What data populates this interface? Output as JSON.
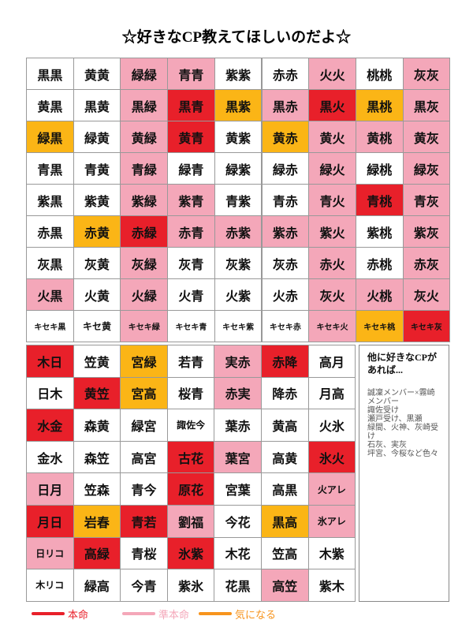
{
  "title": "☆好きなCP教えてほしいのだよ☆",
  "legend": [
    {
      "label": "本命",
      "color": "#e8202a"
    },
    {
      "label": "準本命",
      "color": "#f4a7b9"
    },
    {
      "label": "気になる",
      "color": "#f7941d"
    }
  ],
  "grid1": {
    "rows": [
      [
        {
          "text": "黒黒"
        },
        {
          "text": "黄黄"
        },
        {
          "text": "緑緑",
          "color": "#f4a7b9"
        },
        {
          "text": "青青",
          "color": "#f4a7b9"
        },
        {
          "text": "紫紫"
        },
        {
          "text": "赤赤"
        },
        {
          "text": "火火",
          "color": "#f4a7b9"
        },
        {
          "text": "桃桃"
        },
        {
          "text": "灰灰",
          "color": "#f4a7b9"
        }
      ],
      [
        {
          "text": "黄黒"
        },
        {
          "text": "黒黄"
        },
        {
          "text": "黒緑",
          "color": "#f4a7b9"
        },
        {
          "text": "黒青",
          "color": "#e8202a"
        },
        {
          "text": "黒紫",
          "color": "#fbb516"
        },
        {
          "text": "黒赤",
          "color": "#f4a7b9"
        },
        {
          "text": "黒火",
          "color": "#e8202a"
        },
        {
          "text": "黒桃",
          "color": "#fbb516"
        },
        {
          "text": "黒灰",
          "color": "#f4a7b9"
        }
      ],
      [
        {
          "text": "緑黒",
          "color": "#fbb516"
        },
        {
          "text": "緑黄"
        },
        {
          "text": "黄緑",
          "color": "#f4a7b9"
        },
        {
          "text": "黄青",
          "color": "#e8202a"
        },
        {
          "text": "黄紫"
        },
        {
          "text": "黄赤",
          "color": "#fbb516"
        },
        {
          "text": "黄火",
          "color": "#f4a7b9"
        },
        {
          "text": "黄桃",
          "color": "#f4a7b9"
        },
        {
          "text": "黄灰",
          "color": "#f4a7b9"
        }
      ],
      [
        {
          "text": "青黒"
        },
        {
          "text": "青黄"
        },
        {
          "text": "青緑",
          "color": "#f4a7b9"
        },
        {
          "text": "緑青"
        },
        {
          "text": "緑紫"
        },
        {
          "text": "緑赤"
        },
        {
          "text": "緑火",
          "color": "#f4a7b9"
        },
        {
          "text": "緑桃"
        },
        {
          "text": "緑灰",
          "color": "#f4a7b9"
        }
      ],
      [
        {
          "text": "紫黒"
        },
        {
          "text": "紫黄"
        },
        {
          "text": "紫緑",
          "color": "#f4a7b9"
        },
        {
          "text": "紫青",
          "color": "#f4a7b9"
        },
        {
          "text": "青紫"
        },
        {
          "text": "青赤"
        },
        {
          "text": "青火",
          "color": "#f4a7b9"
        },
        {
          "text": "青桃",
          "color": "#e8202a"
        },
        {
          "text": "青灰",
          "color": "#f4a7b9"
        }
      ],
      [
        {
          "text": "赤黒"
        },
        {
          "text": "赤黄",
          "color": "#fbb516"
        },
        {
          "text": "赤緑",
          "color": "#e8202a"
        },
        {
          "text": "赤青",
          "color": "#f4a7b9"
        },
        {
          "text": "赤紫",
          "color": "#f4a7b9"
        },
        {
          "text": "紫赤",
          "color": "#f4a7b9"
        },
        {
          "text": "紫火",
          "color": "#f4a7b9"
        },
        {
          "text": "紫桃"
        },
        {
          "text": "紫灰",
          "color": "#f4a7b9"
        }
      ],
      [
        {
          "text": "灰黒"
        },
        {
          "text": "灰黄"
        },
        {
          "text": "灰緑",
          "color": "#f4a7b9"
        },
        {
          "text": "灰青"
        },
        {
          "text": "灰紫"
        },
        {
          "text": "灰赤"
        },
        {
          "text": "赤火",
          "color": "#f4a7b9"
        },
        {
          "text": "赤桃"
        },
        {
          "text": "赤灰",
          "color": "#f4a7b9"
        }
      ],
      [
        {
          "text": "火黒",
          "color": "#f4a7b9"
        },
        {
          "text": "火黄"
        },
        {
          "text": "火緑",
          "color": "#f4a7b9"
        },
        {
          "text": "火青"
        },
        {
          "text": "火紫"
        },
        {
          "text": "火赤"
        },
        {
          "text": "灰火",
          "color": "#f4a7b9"
        },
        {
          "text": "火桃",
          "color": "#f4a7b9"
        },
        {
          "text": "灰火",
          "color": "#f4a7b9"
        }
      ],
      [
        {
          "text": "キセキ黒"
        },
        {
          "text": "キセ黄"
        },
        {
          "text": "キセキ緑",
          "color": "#f4a7b9"
        },
        {
          "text": "キセキ青"
        },
        {
          "text": "キセキ紫"
        },
        {
          "text": "キセキ赤"
        },
        {
          "text": "キセキ火",
          "color": "#f4a7b9"
        },
        {
          "text": "キセキ桃",
          "color": "#fbb516"
        },
        {
          "text": "キセキ灰",
          "color": "#e8202a"
        }
      ]
    ]
  },
  "grid2": {
    "rows": [
      [
        {
          "text": "木日",
          "color": "#e8202a"
        },
        {
          "text": "笠黄"
        },
        {
          "text": "宮緑",
          "color": "#fbb516"
        },
        {
          "text": "若青"
        },
        {
          "text": "実赤",
          "color": "#f4a7b9"
        },
        {
          "text": "赤降",
          "color": "#e8202a"
        },
        {
          "text": "高月"
        }
      ],
      [
        {
          "text": "日木"
        },
        {
          "text": "黄笠",
          "color": "#e8202a"
        },
        {
          "text": "宮高",
          "color": "#fbb516"
        },
        {
          "text": "桜青"
        },
        {
          "text": "赤実",
          "color": "#f4a7b9"
        },
        {
          "text": "降赤"
        },
        {
          "text": "月高"
        }
      ],
      [
        {
          "text": "水金",
          "color": "#e8202a"
        },
        {
          "text": "森黄"
        },
        {
          "text": "緑宮"
        },
        {
          "text": "諏佐今"
        },
        {
          "text": "葉赤"
        },
        {
          "text": "黄高"
        },
        {
          "text": "火氷"
        }
      ],
      [
        {
          "text": "金水"
        },
        {
          "text": "森笠"
        },
        {
          "text": "高宮"
        },
        {
          "text": "古花",
          "color": "#e8202a"
        },
        {
          "text": "葉宮",
          "color": "#f4a7b9"
        },
        {
          "text": "高黄"
        },
        {
          "text": "氷火",
          "color": "#e8202a"
        }
      ],
      [
        {
          "text": "日月",
          "color": "#f4a7b9"
        },
        {
          "text": "笠森"
        },
        {
          "text": "青今"
        },
        {
          "text": "原花",
          "color": "#e8202a"
        },
        {
          "text": "宮葉"
        },
        {
          "text": "高黒"
        },
        {
          "text": "火アレ",
          "color": "#f4a7b9"
        }
      ],
      [
        {
          "text": "月日",
          "color": "#e8202a"
        },
        {
          "text": "岩春",
          "color": "#fbb516"
        },
        {
          "text": "青若",
          "color": "#e8202a"
        },
        {
          "text": "劉福",
          "color": "#f4a7b9"
        },
        {
          "text": "今花"
        },
        {
          "text": "黒高",
          "color": "#fbb516"
        },
        {
          "text": "氷アレ",
          "color": "#f4a7b9"
        }
      ],
      [
        {
          "text": "日リコ",
          "color": "#f4a7b9"
        },
        {
          "text": "高緑",
          "color": "#e8202a"
        },
        {
          "text": "青桜"
        },
        {
          "text": "氷紫",
          "color": "#e8202a"
        },
        {
          "text": "木花"
        },
        {
          "text": "笠高"
        },
        {
          "text": "木紫"
        }
      ],
      [
        {
          "text": "木リコ"
        },
        {
          "text": "緑高"
        },
        {
          "text": "今青"
        },
        {
          "text": "紫氷"
        },
        {
          "text": "花黒"
        },
        {
          "text": "高笠",
          "color": "#f4a7b9"
        },
        {
          "text": "紫木"
        }
      ]
    ]
  },
  "note": {
    "heading": "他に好きなCPがあれば...",
    "lines": [
      "誠凜メンバー×霧崎メンバー",
      "諏佐受け",
      "瀬戸受け、黒瀬",
      "緑間、火神、灰崎受け",
      "石灰、実灰",
      "坪宮、今桜など色々"
    ]
  }
}
